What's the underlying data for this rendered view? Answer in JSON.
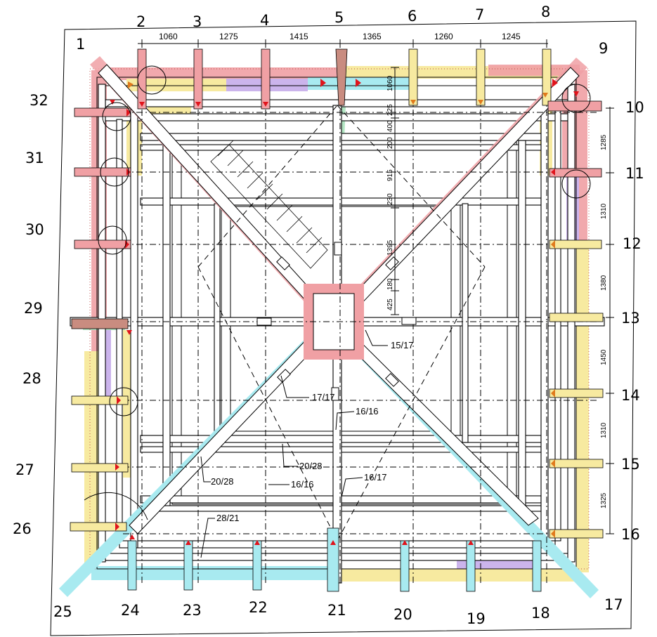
{
  "axes": {
    "top": [
      "1",
      "2",
      "3",
      "4",
      "5",
      "6",
      "7",
      "8",
      "9"
    ],
    "right": [
      "10",
      "11",
      "12",
      "13",
      "14",
      "15",
      "16"
    ],
    "bottom": [
      "17",
      "18",
      "19",
      "20",
      "21",
      "22",
      "23",
      "24",
      "25"
    ],
    "left": [
      "26",
      "27",
      "28",
      "29",
      "30",
      "31",
      "32"
    ]
  },
  "dimensions": {
    "top": [
      "1060",
      "1275",
      "1415",
      "1365",
      "1260",
      "1245"
    ],
    "right": [
      "1285",
      "1310",
      "1380",
      "1450",
      "1310",
      "1325"
    ],
    "center": [
      "1060",
      "225",
      "400",
      "200",
      "915",
      "230",
      "1395",
      "180",
      "425"
    ]
  },
  "labels": {
    "center_post": "15/17",
    "diag_beam": "17/17",
    "central_beam": "16/16",
    "purlin": "20/28",
    "rafter_a": "20/28",
    "dashed_beam": "16/16",
    "ridge_post": "16/17",
    "bottom_plate": "28/21"
  },
  "colors": {
    "red": "#f0a0a4",
    "yellow": "#f7eaa0",
    "cyan": "#a8eaf0",
    "purple": "#cbb4ec",
    "green": "#b4e6c4",
    "brown": "#c98c80",
    "marker": "#e0141c",
    "marker_orange": "#e07a1c"
  }
}
